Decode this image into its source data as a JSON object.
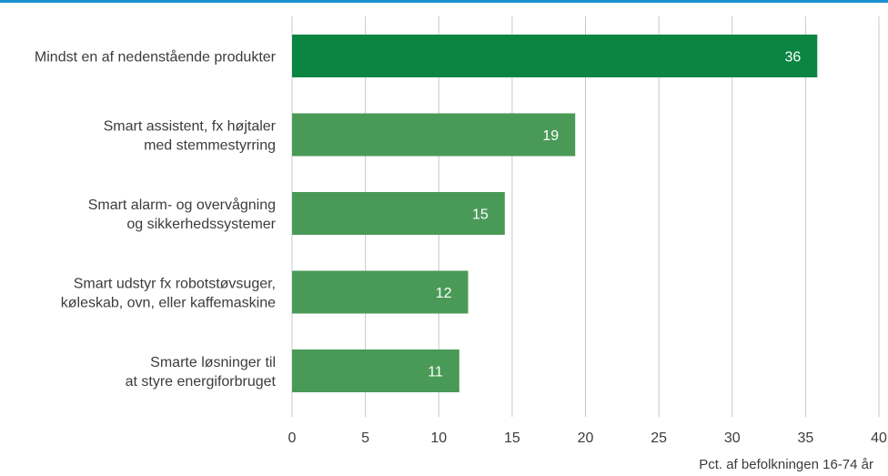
{
  "colors": {
    "accent_rule": "#1a8fd1",
    "highlight_bar": "#0a8542",
    "bar": "#4a9a57",
    "grid": "#c8c8c8"
  },
  "chart_data": {
    "type": "bar",
    "orientation": "horizontal",
    "categories": [
      [
        "Mindst en af nedenstående produkter"
      ],
      [
        "Smart assistent, fx højtaler",
        "med stemmestyrring"
      ],
      [
        "Smart alarm- og overvågning",
        "og sikkerhedssystemer"
      ],
      [
        "Smart udstyr fx robotstøvsuger,",
        "køleskab, ovn, eller kaffemaskine"
      ],
      [
        "Smarte løsninger til",
        "at styre energiforbruget"
      ]
    ],
    "values": [
      35.8,
      19.3,
      14.5,
      12.0,
      11.4
    ],
    "value_labels": [
      "36",
      "19",
      "15",
      "12",
      "11"
    ],
    "highlight_index": 0,
    "xlim": [
      0,
      40
    ],
    "xticks": [
      0,
      5,
      10,
      15,
      20,
      25,
      30,
      35,
      40
    ],
    "xlabel": "Pct. af befolkningen 16-74 år",
    "ylabel": "",
    "title": "",
    "grid": "vertical",
    "legend": "none"
  }
}
